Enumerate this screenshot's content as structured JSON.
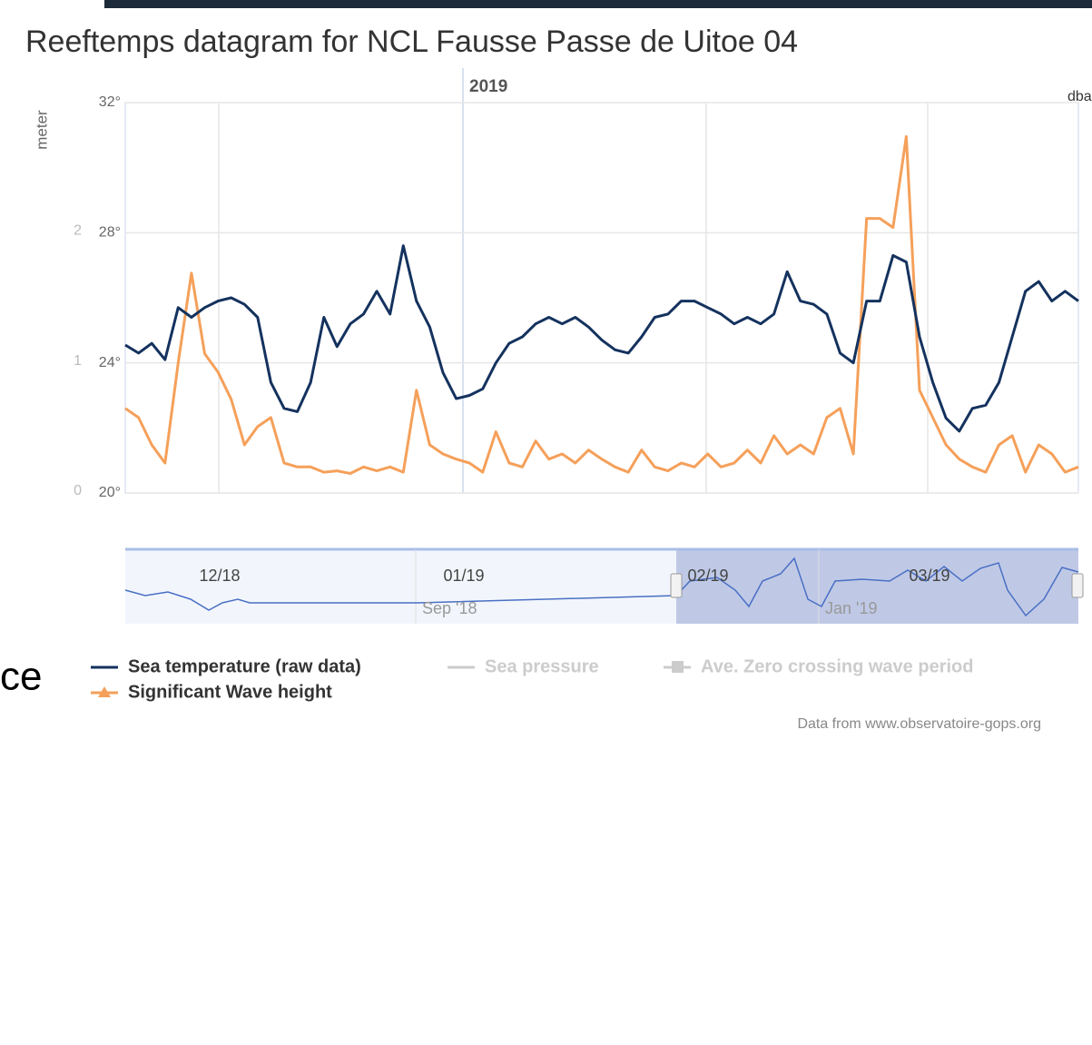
{
  "chart_data": {
    "type": "line",
    "title": "Reeftemps datagram for NCL Fausse Passe de Uitoe 04",
    "y2_title": "meter",
    "right_axis_title": "dba",
    "year_label": "2019",
    "ylim": [
      20,
      32
    ],
    "yticks": [
      {
        "value": 20,
        "label": "20°"
      },
      {
        "value": 24,
        "label": "24°"
      },
      {
        "value": 28,
        "label": "28°"
      },
      {
        "value": 32,
        "label": "32°"
      }
    ],
    "y2lim": [
      0,
      3
    ],
    "y2ticks": [
      0,
      1,
      2
    ],
    "grid": true,
    "series": [
      {
        "name": "Sea temperature (raw data)",
        "color": "#14325e",
        "values": [
          24.55,
          24.3,
          24.6,
          24.1,
          25.7,
          25.4,
          25.7,
          25.9,
          26.0,
          25.8,
          25.4,
          23.4,
          22.6,
          22.5,
          23.4,
          25.4,
          24.5,
          25.2,
          25.5,
          26.2,
          25.5,
          27.6,
          25.9,
          25.1,
          23.7,
          22.9,
          23.0,
          23.2,
          24.0,
          24.6,
          24.8,
          25.2,
          25.4,
          25.2,
          25.4,
          25.1,
          24.7,
          24.4,
          24.3,
          24.8,
          25.4,
          25.5,
          25.9,
          25.9,
          25.7,
          25.5,
          25.2,
          25.4,
          25.2,
          25.5,
          26.8,
          25.9,
          25.8,
          25.5,
          24.3,
          24.0,
          25.9,
          25.9,
          27.3,
          27.1,
          24.8,
          23.4,
          22.3,
          21.9,
          22.6,
          22.7,
          23.4,
          24.8,
          26.2,
          26.5,
          25.9,
          26.2,
          25.9
        ]
      },
      {
        "name": "Significant Wave height",
        "color": "#f5a05a",
        "axis": "y2",
        "values": [
          0.65,
          0.58,
          0.37,
          0.23,
          1.0,
          1.69,
          1.07,
          0.93,
          0.72,
          0.37,
          0.51,
          0.58,
          0.23,
          0.2,
          0.2,
          0.16,
          0.17,
          0.15,
          0.2,
          0.17,
          0.2,
          0.16,
          0.79,
          0.37,
          0.3,
          0.26,
          0.23,
          0.16,
          0.47,
          0.23,
          0.2,
          0.4,
          0.26,
          0.3,
          0.23,
          0.33,
          0.26,
          0.2,
          0.16,
          0.33,
          0.2,
          0.17,
          0.23,
          0.2,
          0.3,
          0.2,
          0.23,
          0.33,
          0.23,
          0.44,
          0.3,
          0.37,
          0.3,
          0.58,
          0.65,
          0.3,
          2.11,
          2.11,
          2.04,
          2.74,
          0.79,
          0.58,
          0.37,
          0.26,
          0.2,
          0.16,
          0.37,
          0.44,
          0.16,
          0.37,
          0.3,
          0.16,
          0.2
        ]
      }
    ],
    "hidden_series": [
      {
        "name": "Sea pressure",
        "color": "#cccccc"
      },
      {
        "name": "Ave. Zero crossing wave period",
        "color": "#cccccc"
      }
    ],
    "navigator": {
      "ticks": [
        "12/18",
        "01/19",
        "02/19",
        "03/19"
      ],
      "dates": [
        "Sep '18",
        "Jan '19"
      ]
    },
    "credit": "Data from www.observatoire-gops.org"
  },
  "background_text": "ce"
}
